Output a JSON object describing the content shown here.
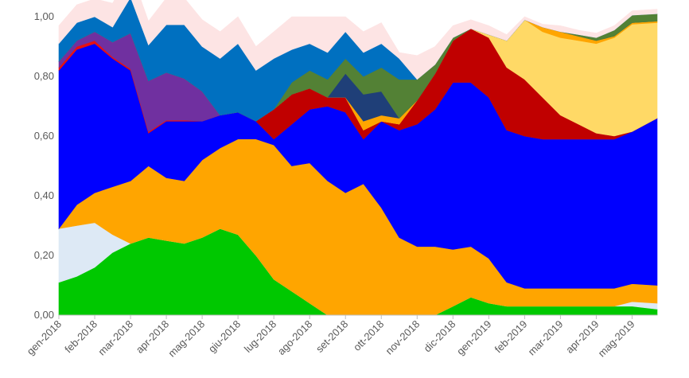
{
  "chart_data": {
    "type": "area",
    "stacked": true,
    "normalized": true,
    "title": "",
    "xlabel": "",
    "ylabel": "",
    "ylim": [
      0,
      1
    ],
    "yticks": [
      "0,00",
      "0,20",
      "0,40",
      "0,60",
      "0,80",
      "1,00"
    ],
    "ytick_values": [
      0,
      0.2,
      0.4,
      0.6,
      0.8,
      1.0
    ],
    "grid": false,
    "legend": "none",
    "xtick_labels": [
      "gen-2018",
      "feb-2018",
      "mar-2018",
      "apr-2018",
      "mag-2018",
      "giu-2018",
      "lug-2018",
      "ago-2018",
      "set-2018",
      "ott-2018",
      "nov-2018",
      "dic-2018",
      "gen-2019",
      "feb-2019",
      "mar-2019",
      "apr-2019",
      "mag-2019"
    ],
    "xlim": [
      0,
      16.7
    ],
    "x": [
      0,
      0.5,
      1,
      1.5,
      2,
      2.5,
      3,
      3.5,
      4,
      4.5,
      5,
      5.5,
      6,
      6.5,
      7,
      7.5,
      8,
      8.5,
      9,
      9.5,
      10,
      10.5,
      11,
      11.5,
      12,
      12.5,
      13,
      13.5,
      14,
      14.5,
      15,
      15.5,
      16,
      16.7
    ],
    "series": [
      {
        "color": "#00c800",
        "values": [
          0.11,
          0.13,
          0.16,
          0.21,
          0.24,
          0.26,
          0.25,
          0.24,
          0.26,
          0.29,
          0.27,
          0.2,
          0.12,
          0.08,
          0.04,
          0.0,
          0.0,
          0.0,
          0.0,
          0.0,
          0.0,
          0.0,
          0.03,
          0.06,
          0.04,
          0.03,
          0.03,
          0.03,
          0.03,
          0.03,
          0.03,
          0.03,
          0.03,
          0.02
        ]
      },
      {
        "color": "#dde9f5",
        "values": [
          0.18,
          0.17,
          0.15,
          0.06,
          0.0,
          0.0,
          0.0,
          0.0,
          0.0,
          0.0,
          0.0,
          0.0,
          0.0,
          0.0,
          0.0,
          0.0,
          0.0,
          0.0,
          0.0,
          0.0,
          0.0,
          0.0,
          0.0,
          0.0,
          0.0,
          0.0,
          0.0,
          0.0,
          0.0,
          0.0,
          0.0,
          0.0,
          0.015,
          0.02
        ]
      },
      {
        "color": "#ffa500",
        "values": [
          0.0,
          0.07,
          0.1,
          0.16,
          0.21,
          0.24,
          0.21,
          0.21,
          0.26,
          0.27,
          0.32,
          0.39,
          0.45,
          0.42,
          0.47,
          0.45,
          0.41,
          0.44,
          0.36,
          0.26,
          0.23,
          0.23,
          0.19,
          0.17,
          0.15,
          0.08,
          0.06,
          0.06,
          0.06,
          0.06,
          0.06,
          0.06,
          0.06,
          0.06
        ]
      },
      {
        "color": "#0000ff",
        "values": [
          0.53,
          0.52,
          0.5,
          0.43,
          0.37,
          0.11,
          0.19,
          0.2,
          0.13,
          0.11,
          0.09,
          0.06,
          0.02,
          0.14,
          0.18,
          0.25,
          0.27,
          0.15,
          0.29,
          0.36,
          0.41,
          0.46,
          0.56,
          0.55,
          0.54,
          0.51,
          0.51,
          0.5,
          0.5,
          0.5,
          0.5,
          0.5,
          0.51,
          0.56
        ]
      },
      {
        "color": "#e81010",
        "values": [
          0.01,
          0.01,
          0.01,
          0.005,
          0.005,
          0.005,
          0.003,
          0.003,
          0.0,
          0.0,
          0.0,
          0.0,
          0.0,
          0.0,
          0.0,
          0.0,
          0.0,
          0.0,
          0.0,
          0.0,
          0.0,
          0.0,
          0.0,
          0.0,
          0.0,
          0.0,
          0.0,
          0.0,
          0.0,
          0.0,
          0.0,
          0.0,
          0.0,
          0.0
        ]
      },
      {
        "color": "#7030a0",
        "values": [
          0.02,
          0.02,
          0.03,
          0.05,
          0.12,
          0.17,
          0.16,
          0.14,
          0.1,
          0.0,
          0.0,
          0.0,
          0.0,
          0.0,
          0.0,
          0.0,
          0.0,
          0.0,
          0.0,
          0.0,
          0.0,
          0.0,
          0.0,
          0.0,
          0.0,
          0.0,
          0.0,
          0.0,
          0.0,
          0.0,
          0.0,
          0.0,
          0.0,
          0.0
        ]
      },
      {
        "color": "#c00000",
        "values": [
          0.0,
          0.0,
          0.0,
          0.0,
          0.0,
          0.0,
          0.0,
          0.0,
          0.0,
          0.0,
          0.0,
          0.0,
          0.1,
          0.1,
          0.07,
          0.03,
          0.05,
          0.03,
          0.0,
          0.02,
          0.08,
          0.12,
          0.14,
          0.18,
          0.2,
          0.21,
          0.19,
          0.14,
          0.08,
          0.05,
          0.02,
          0.01,
          0.0,
          0.0
        ]
      },
      {
        "color": "#ffd966",
        "values": [
          0.0,
          0.0,
          0.0,
          0.0,
          0.0,
          0.0,
          0.0,
          0.0,
          0.0,
          0.0,
          0.0,
          0.0,
          0.0,
          0.0,
          0.0,
          0.0,
          0.0,
          0.0,
          0.0,
          0.0,
          0.0,
          0.0,
          0.0,
          0.0,
          0.01,
          0.09,
          0.2,
          0.22,
          0.26,
          0.28,
          0.3,
          0.33,
          0.36,
          0.32
        ]
      },
      {
        "color": "#ffa500",
        "values": [
          0.0,
          0.0,
          0.0,
          0.0,
          0.0,
          0.0,
          0.0,
          0.0,
          0.0,
          0.0,
          0.0,
          0.0,
          0.0,
          0.0,
          0.0,
          0.0,
          0.0,
          0.03,
          0.02,
          0.02,
          0.0,
          0.0,
          0.0,
          0.0,
          0.0,
          0.0,
          0.0,
          0.015,
          0.02,
          0.015,
          0.01,
          0.005,
          0.005,
          0.005
        ]
      },
      {
        "color": "#1f3f78",
        "values": [
          0.0,
          0.0,
          0.0,
          0.0,
          0.0,
          0.0,
          0.0,
          0.0,
          0.0,
          0.0,
          0.0,
          0.0,
          0.0,
          0.0,
          0.0,
          0.0,
          0.08,
          0.09,
          0.08,
          0.0,
          0.0,
          0.0,
          0.0,
          0.0,
          0.0,
          0.0,
          0.0,
          0.0,
          0.0,
          0.0,
          0.0,
          0.0,
          0.0,
          0.0
        ]
      },
      {
        "color": "#538135",
        "values": [
          0.0,
          0.0,
          0.0,
          0.0,
          0.0,
          0.0,
          0.0,
          0.0,
          0.0,
          0.0,
          0.0,
          0.0,
          0.0,
          0.04,
          0.06,
          0.06,
          0.05,
          0.06,
          0.08,
          0.13,
          0.07,
          0.03,
          0.01,
          0.0,
          0.0,
          0.0,
          0.0,
          0.0,
          0.0,
          0.005,
          0.01,
          0.02,
          0.025,
          0.025
        ]
      },
      {
        "color": "#0070c0",
        "values": [
          0.06,
          0.06,
          0.05,
          0.05,
          0.12,
          0.12,
          0.16,
          0.18,
          0.15,
          0.19,
          0.23,
          0.17,
          0.17,
          0.11,
          0.09,
          0.09,
          0.09,
          0.08,
          0.08,
          0.07,
          0.0,
          0.0,
          0.0,
          0.0,
          0.0,
          0.0,
          0.0,
          0.0,
          0.0,
          0.0,
          0.0,
          0.0,
          0.0,
          0.0
        ]
      },
      {
        "color": "#fde4e4",
        "values": [
          0.06,
          0.06,
          0.06,
          0.08,
          0.09,
          0.08,
          0.09,
          0.09,
          0.09,
          0.09,
          0.09,
          0.08,
          0.09,
          0.11,
          0.09,
          0.12,
          0.05,
          0.07,
          0.07,
          0.02,
          0.08,
          0.06,
          0.04,
          0.03,
          0.03,
          0.02,
          0.01,
          0.01,
          0.02,
          0.015,
          0.015,
          0.015,
          0.015,
          0.015
        ]
      }
    ]
  }
}
